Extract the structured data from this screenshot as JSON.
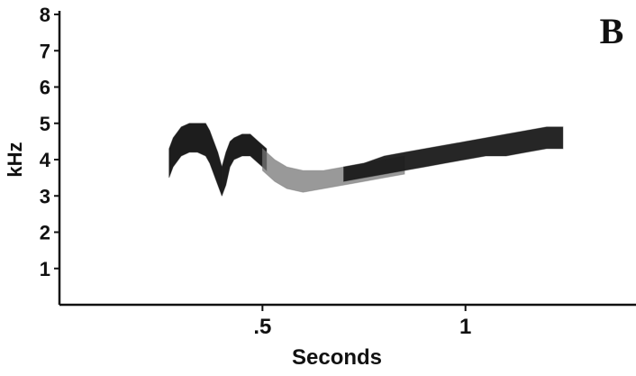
{
  "chart_data": {
    "type": "area",
    "panel_label": "B",
    "xlabel": "Seconds",
    "ylabel": "kHz",
    "xlim": [
      0.0,
      1.42
    ],
    "ylim": [
      0,
      8
    ],
    "x_ticks": [
      {
        "value": 0.5,
        "label": ".5"
      },
      {
        "value": 1.0,
        "label": "1"
      }
    ],
    "y_ticks": [
      {
        "value": 1,
        "label": "1"
      },
      {
        "value": 2,
        "label": "2"
      },
      {
        "value": 3,
        "label": "3"
      },
      {
        "value": 4,
        "label": "4"
      },
      {
        "value": 5,
        "label": "5"
      },
      {
        "value": 6,
        "label": "6"
      },
      {
        "value": 7,
        "label": "7"
      },
      {
        "value": 8,
        "label": "8"
      }
    ],
    "grid": false,
    "series": [
      {
        "color": "#111111",
        "segments": [
          {
            "x": [
              0.27,
              0.28,
              0.3,
              0.32,
              0.34,
              0.36,
              0.37,
              0.38,
              0.39,
              0.4
            ],
            "low": [
              3.5,
              3.8,
              4.1,
              4.2,
              4.2,
              4.1,
              3.9,
              3.6,
              3.3,
              3.0
            ],
            "high": [
              4.3,
              4.6,
              4.9,
              5.0,
              5.0,
              5.0,
              4.8,
              4.5,
              4.2,
              3.8
            ]
          },
          {
            "x": [
              0.4,
              0.41,
              0.42,
              0.43,
              0.45,
              0.47,
              0.49,
              0.51
            ],
            "low": [
              3.0,
              3.3,
              3.8,
              4.0,
              4.1,
              4.1,
              3.9,
              3.7
            ],
            "high": [
              3.8,
              4.2,
              4.5,
              4.6,
              4.7,
              4.7,
              4.5,
              4.3
            ]
          }
        ]
      },
      {
        "color": "#777777",
        "segments": [
          {
            "x": [
              0.5,
              0.53,
              0.56,
              0.6,
              0.65,
              0.7,
              0.75,
              0.8,
              0.85
            ],
            "low": [
              3.7,
              3.4,
              3.2,
              3.1,
              3.2,
              3.3,
              3.4,
              3.5,
              3.6
            ],
            "high": [
              4.3,
              4.0,
              3.8,
              3.7,
              3.7,
              3.8,
              3.9,
              4.0,
              4.1
            ]
          }
        ]
      },
      {
        "color": "#1a1a1a",
        "segments": [
          {
            "x": [
              0.7,
              0.75,
              0.8,
              0.85,
              0.9,
              0.95,
              1.0,
              1.05,
              1.1,
              1.15,
              1.2,
              1.24
            ],
            "low": [
              3.4,
              3.5,
              3.6,
              3.7,
              3.8,
              3.9,
              4.0,
              4.1,
              4.1,
              4.2,
              4.3,
              4.3
            ],
            "high": [
              3.8,
              3.9,
              4.1,
              4.2,
              4.3,
              4.4,
              4.5,
              4.6,
              4.7,
              4.8,
              4.9,
              4.9
            ]
          }
        ]
      }
    ]
  }
}
